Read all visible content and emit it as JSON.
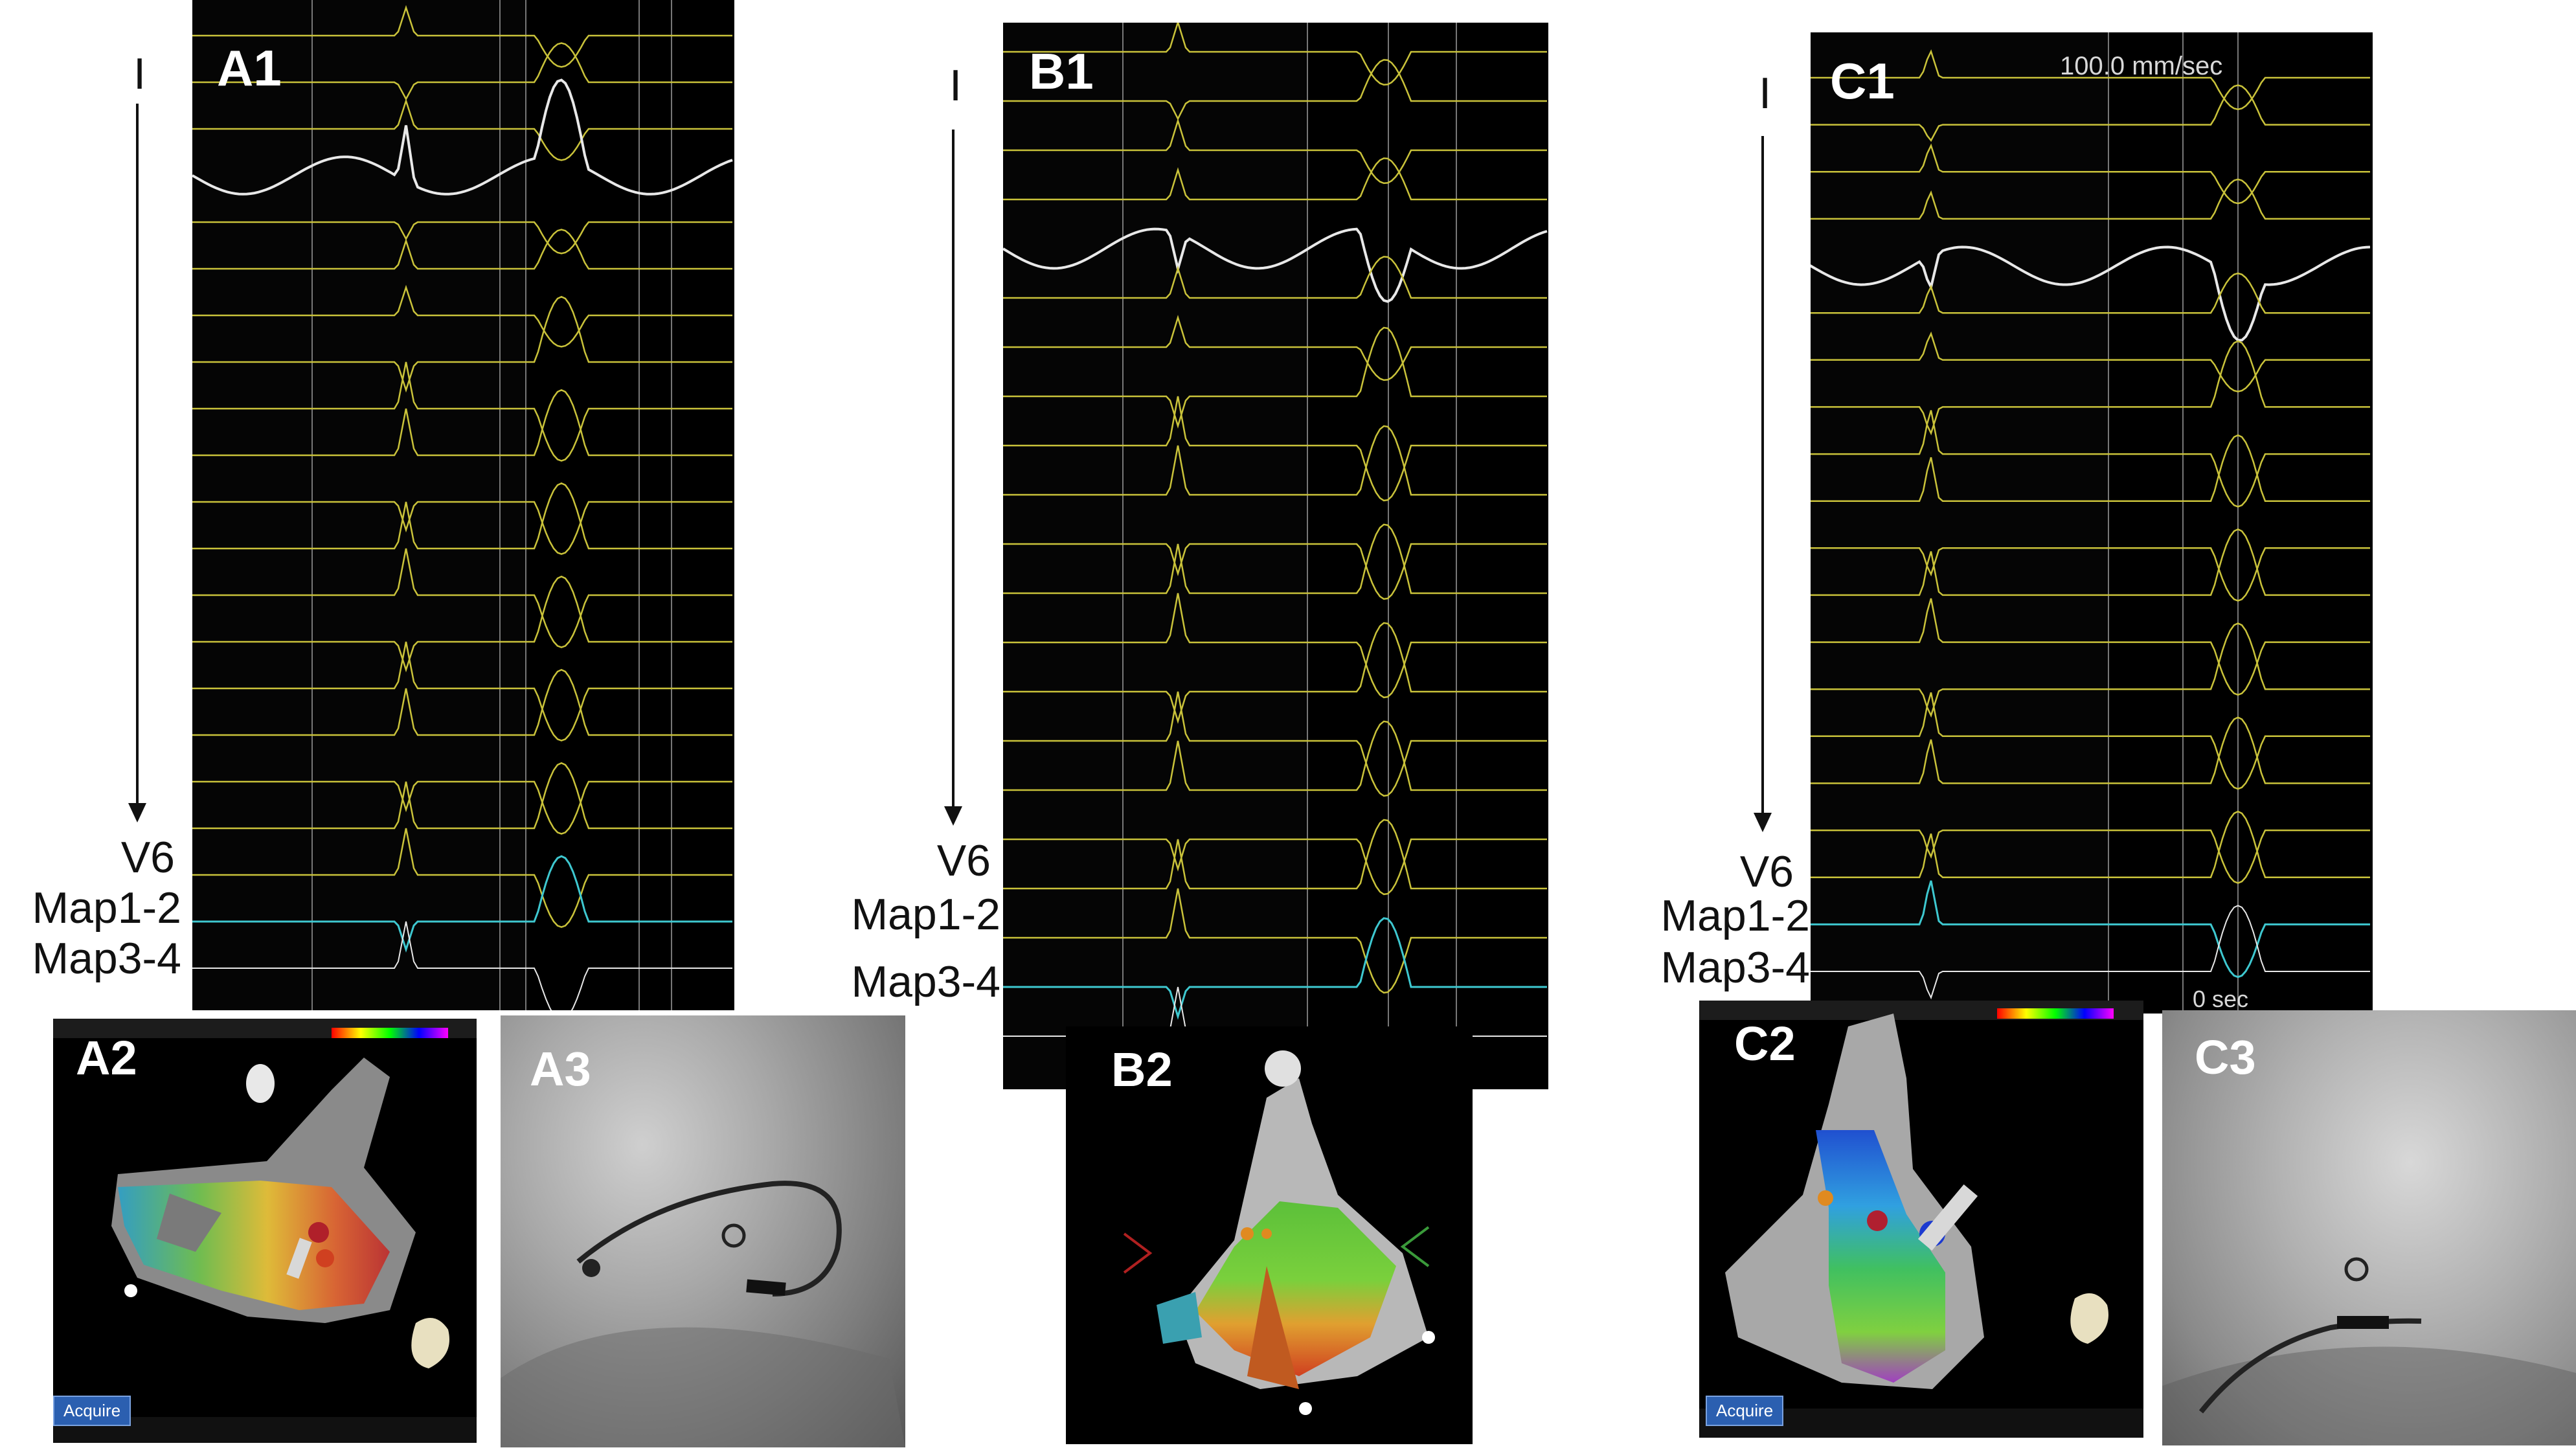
{
  "panels": {
    "A1": {
      "label": "A1"
    },
    "A2": {
      "label": "A2",
      "acquire": "Acquire"
    },
    "A3": {
      "label": "A3"
    },
    "B1": {
      "label": "B1"
    },
    "B2": {
      "label": "B2"
    },
    "C1": {
      "label": "C1",
      "speed": "100.0 mm/sec",
      "zero": "0 sec"
    },
    "C2": {
      "label": "C2",
      "acquire": "Acquire"
    },
    "C3": {
      "label": "C3"
    }
  },
  "leads": {
    "top": "I",
    "v6": "V6",
    "map12": "Map1-2",
    "map34": "Map3-4"
  },
  "colors": {
    "ecg_yellow": "#c9c23a",
    "map_white": "#e8e8e8",
    "map_cyan": "#3ec8d0",
    "panel_bg": "#050505"
  }
}
